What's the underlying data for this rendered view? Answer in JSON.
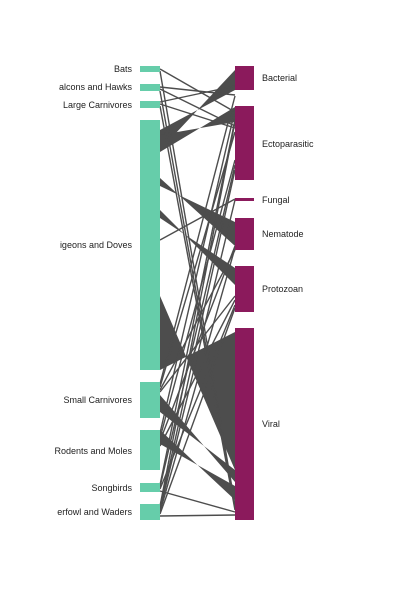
{
  "colors": {
    "left_nodes": "#66cdaa",
    "right_nodes": "#8b1a5c",
    "links": "#4d4d4d"
  },
  "left_nodes": [
    {
      "id": "bats",
      "label": "Bats"
    },
    {
      "id": "falcons",
      "label": "alcons and Hawks"
    },
    {
      "id": "large",
      "label": "Large Carnivores"
    },
    {
      "id": "pigeons",
      "label": "igeons and Doves"
    },
    {
      "id": "small",
      "label": "Small Carnivores"
    },
    {
      "id": "rodents",
      "label": "Rodents and Moles"
    },
    {
      "id": "songbirds",
      "label": "Songbirds"
    },
    {
      "id": "waterfowl",
      "label": "erfowl and Waders"
    }
  ],
  "right_nodes": [
    {
      "id": "bacterial",
      "label": "Bacterial"
    },
    {
      "id": "ecto",
      "label": "Ectoparasitic"
    },
    {
      "id": "fungal",
      "label": "Fungal"
    },
    {
      "id": "nematode",
      "label": "Nematode"
    },
    {
      "id": "protozoan",
      "label": "Protozoan"
    },
    {
      "id": "viral",
      "label": "Viral"
    }
  ]
}
